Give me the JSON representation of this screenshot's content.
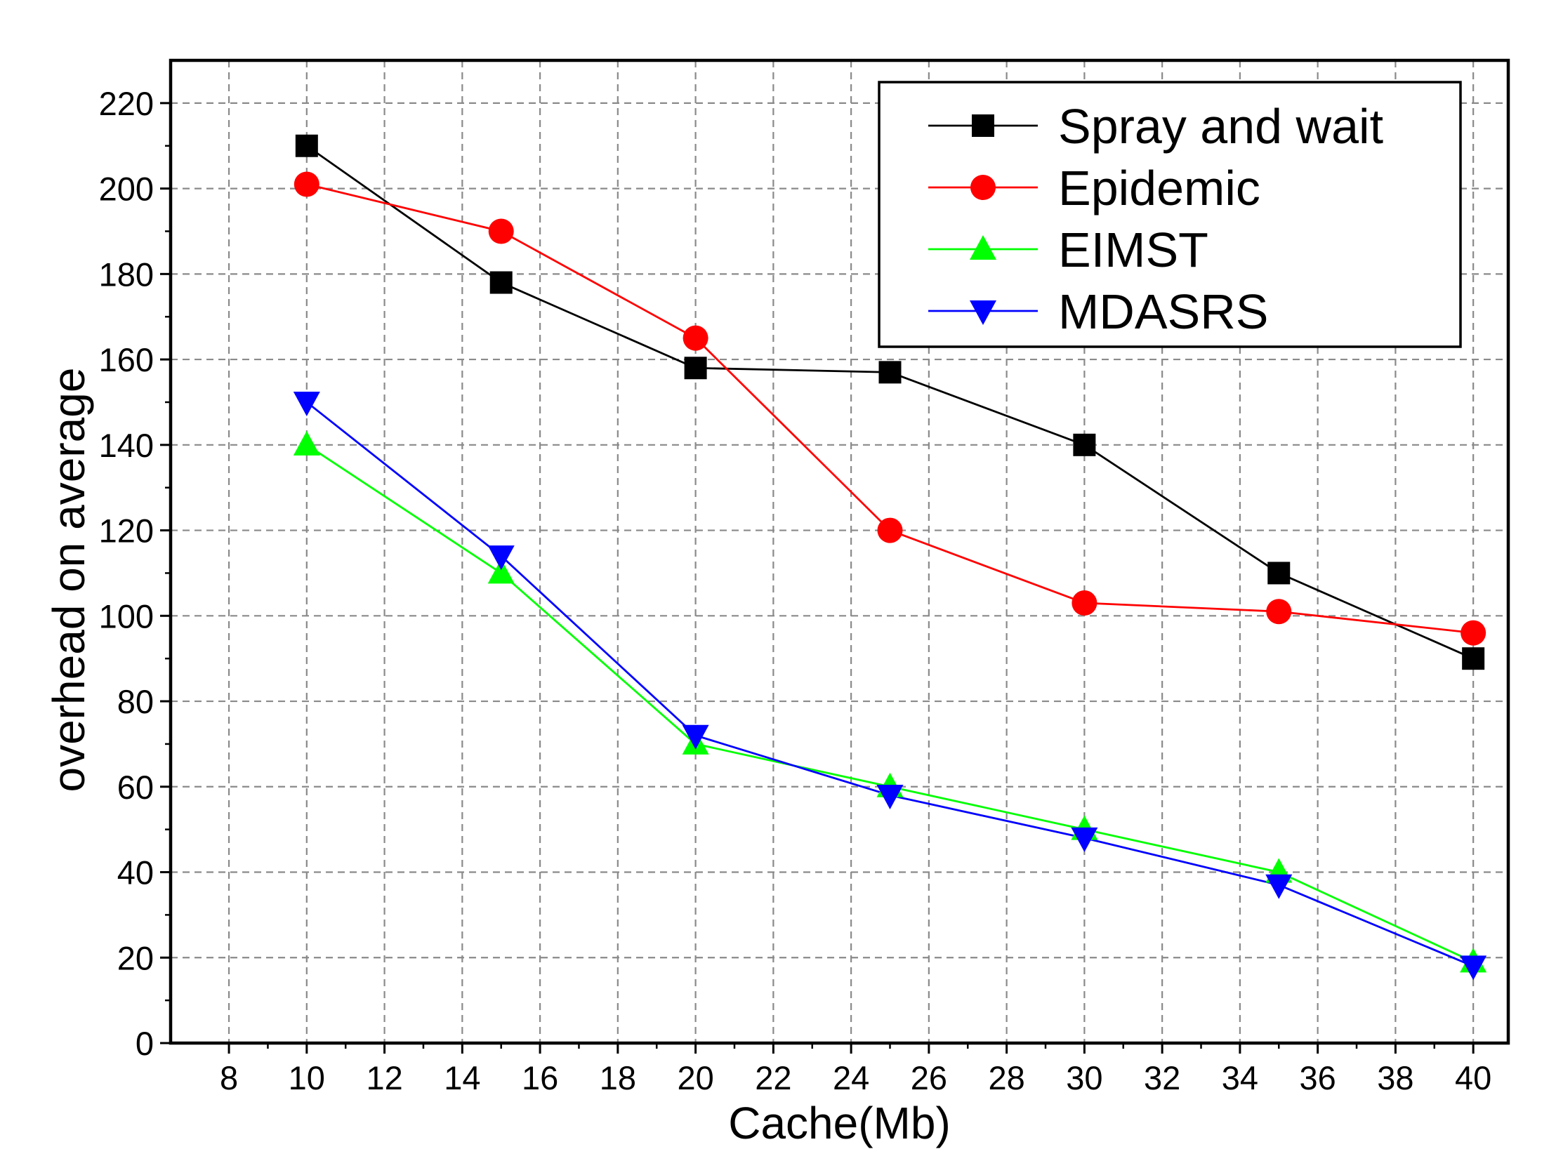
{
  "chart_data": {
    "type": "line",
    "xlabel": "Cache(Mb)",
    "ylabel": "overhead on average",
    "xlim": [
      6.5,
      40.9
    ],
    "ylim": [
      0,
      230
    ],
    "x_ticks": [
      8,
      10,
      12,
      14,
      16,
      18,
      20,
      22,
      24,
      26,
      28,
      30,
      32,
      34,
      36,
      38,
      40
    ],
    "y_ticks": [
      0,
      20,
      40,
      60,
      80,
      100,
      120,
      140,
      160,
      180,
      200,
      220
    ],
    "grid": true,
    "legend_position": "top-right",
    "x": [
      10,
      15,
      20,
      25,
      30,
      35,
      40
    ],
    "series": [
      {
        "name": "Spray and wait",
        "color": "#000000",
        "marker": "square",
        "values": [
          210,
          178,
          158,
          157,
          140,
          110,
          90
        ]
      },
      {
        "name": "Epidemic",
        "color": "#ff0000",
        "marker": "circle",
        "values": [
          201,
          190,
          165,
          120,
          103,
          101,
          96
        ]
      },
      {
        "name": "EIMST",
        "color": "#00ff00",
        "marker": "triangle-up",
        "values": [
          140,
          110,
          70,
          60,
          50,
          40,
          19
        ]
      },
      {
        "name": "MDASRS",
        "color": "#0000ff",
        "marker": "triangle-down",
        "values": [
          150,
          114,
          72,
          58,
          48,
          37,
          18
        ]
      }
    ]
  }
}
